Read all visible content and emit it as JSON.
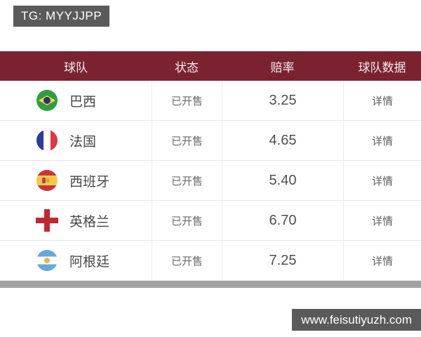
{
  "badges": {
    "tg": "TG: MYYJJPP",
    "site": "www.feisutiyuzh.com"
  },
  "table": {
    "columns": [
      "球队",
      "状态",
      "赔率",
      "球队数据"
    ],
    "rows": [
      {
        "flag": "brazil",
        "flag_icon": "brazil-flag-icon",
        "team": "巴西",
        "status": "已开售",
        "odds": "3.25",
        "detail": "详情"
      },
      {
        "flag": "france",
        "flag_icon": "france-flag-icon",
        "team": "法国",
        "status": "已开售",
        "odds": "4.65",
        "detail": "详情"
      },
      {
        "flag": "spain",
        "flag_icon": "spain-flag-icon",
        "team": "西班牙",
        "status": "已开售",
        "odds": "5.40",
        "detail": "详情"
      },
      {
        "flag": "england",
        "flag_icon": "england-flag-icon",
        "team": "英格兰",
        "status": "已开售",
        "odds": "6.70",
        "detail": "详情"
      },
      {
        "flag": "argentina",
        "flag_icon": "argentina-flag-icon",
        "team": "阿根廷",
        "status": "已开售",
        "odds": "7.25",
        "detail": "详情"
      }
    ]
  },
  "colors": {
    "header_bg": "#7b2231",
    "badge_bg": "#5a5a5a",
    "scrollbar_bar": "#a2a2a2",
    "england_cross_red": "#c2262e"
  }
}
